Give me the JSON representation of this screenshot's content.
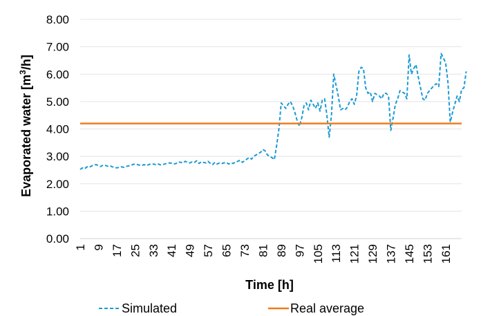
{
  "chart_data": {
    "type": "line",
    "xlabel": "Time [h]",
    "ylabel_main": "Evaporated water [m",
    "ylabel_sup": "3",
    "ylabel_end": "/h]",
    "ylim": [
      0,
      8
    ],
    "yticks": [
      "0.00",
      "1.00",
      "2.00",
      "3.00",
      "4.00",
      "5.00",
      "6.00",
      "7.00",
      "8.00"
    ],
    "x_start": 1,
    "x_end": 168,
    "xticks": [
      "1",
      "9",
      "17",
      "25",
      "33",
      "41",
      "49",
      "57",
      "65",
      "73",
      "81",
      "89",
      "97",
      "105",
      "113",
      "121",
      "129",
      "137",
      "145",
      "153",
      "161"
    ],
    "legend_position": "bottom",
    "series": [
      {
        "name": "Simulated",
        "color": "#1a9ad6",
        "style": "dashed",
        "values": [
          2.52,
          2.58,
          2.55,
          2.62,
          2.6,
          2.65,
          2.68,
          2.7,
          2.66,
          2.63,
          2.68,
          2.67,
          2.64,
          2.66,
          2.62,
          2.6,
          2.58,
          2.6,
          2.62,
          2.6,
          2.63,
          2.65,
          2.66,
          2.7,
          2.72,
          2.7,
          2.68,
          2.67,
          2.7,
          2.66,
          2.7,
          2.72,
          2.72,
          2.7,
          2.73,
          2.69,
          2.7,
          2.72,
          2.74,
          2.76,
          2.75,
          2.72,
          2.74,
          2.8,
          2.78,
          2.76,
          2.82,
          2.78,
          2.76,
          2.8,
          2.78,
          2.84,
          2.74,
          2.8,
          2.78,
          2.76,
          2.82,
          2.74,
          2.7,
          2.78,
          2.72,
          2.76,
          2.74,
          2.76,
          2.78,
          2.72,
          2.76,
          2.74,
          2.8,
          2.82,
          2.86,
          2.78,
          2.84,
          2.9,
          2.96,
          2.9,
          3.0,
          3.05,
          3.1,
          3.15,
          3.25,
          3.2,
          3.05,
          3.0,
          2.95,
          2.88,
          3.4,
          4.0,
          4.95,
          4.85,
          4.75,
          4.9,
          5.0,
          4.85,
          4.6,
          4.3,
          4.1,
          4.4,
          4.85,
          4.95,
          4.7,
          5.05,
          4.9,
          4.75,
          4.95,
          4.65,
          5.05,
          5.1,
          4.5,
          3.7,
          4.5,
          6.0,
          5.6,
          5.2,
          4.7,
          4.75,
          4.7,
          4.8,
          5.0,
          5.1,
          4.9,
          5.2,
          6.1,
          6.25,
          6.2,
          5.5,
          5.3,
          5.35,
          5.0,
          5.3,
          5.25,
          5.2,
          5.1,
          5.3,
          5.3,
          5.2,
          3.95,
          4.4,
          4.9,
          5.1,
          5.4,
          5.35,
          5.3,
          5.1,
          6.7,
          6.0,
          6.2,
          6.35,
          5.9,
          5.5,
          5.1,
          5.05,
          5.3,
          5.4,
          5.5,
          5.6,
          5.65,
          5.55,
          6.75,
          6.6,
          6.4,
          5.7,
          4.25,
          4.6,
          4.9,
          5.2,
          5.0,
          5.45,
          5.5,
          6.1
        ]
      },
      {
        "name": "Real average",
        "color": "#f07b1e",
        "style": "solid",
        "values": [
          4.2
        ]
      }
    ]
  }
}
